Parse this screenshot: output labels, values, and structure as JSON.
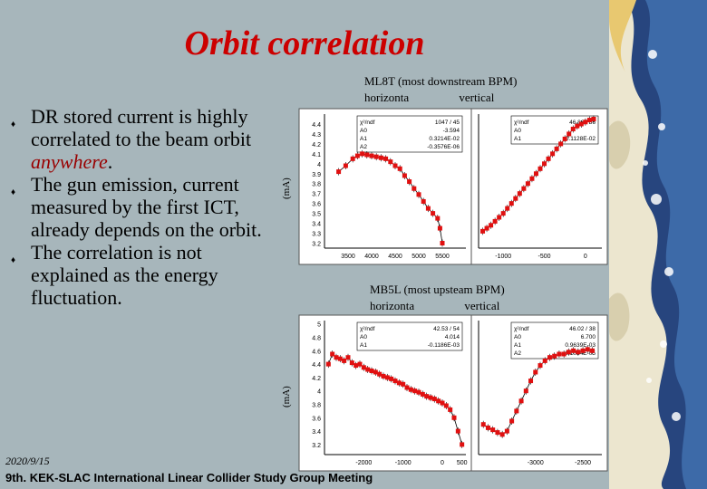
{
  "slide": {
    "title": "Orbit correlation",
    "bullets": [
      {
        "pre": "DR stored current is highly correlated to the beam orbit ",
        "em": "anywhere",
        "post": "."
      },
      {
        "pre": "The gun emission, current measured by the first ICT, already depends on the orbit.",
        "em": "",
        "post": ""
      },
      {
        "pre": "The correlation is not explained as the energy fluctuation.",
        "em": "",
        "post": ""
      }
    ],
    "top_caption": "ML8T (most downstream BPM)",
    "top_sub": "horizonta                 vertical",
    "bottom_caption": "MB5L (most upsteam BPM)",
    "bottom_sub": "horizonta                 vertical",
    "y_unit": "(mA)",
    "date": "2020/9/15",
    "meeting": "9th. KEK-SLAC International Linear Collider Study Group Meeting"
  },
  "chart_data": [
    {
      "type": "scatter",
      "name": "ML8T horizontal",
      "ylim": [
        3.15,
        4.5
      ],
      "xlim": [
        3000,
        6000
      ],
      "yticks": [
        "4.4",
        "4.3",
        "4.2",
        "4.1",
        "4",
        "3.9",
        "3.8",
        "3.7",
        "3.6",
        "3.5",
        "3.4",
        "3.3",
        "3.2"
      ],
      "xticks": [
        "3500",
        "4000",
        "4500",
        "5000",
        "5500"
      ],
      "fit_box": [
        [
          "χ²/ndf",
          "1047 / 45"
        ],
        [
          "A0",
          "-3.594"
        ],
        [
          "A1",
          "0.3214E-02"
        ],
        [
          "A2",
          "-0.3576E-06"
        ]
      ],
      "x": [
        3300,
        3450,
        3600,
        3700,
        3800,
        3900,
        4000,
        4100,
        4200,
        4300,
        4400,
        4500,
        4600,
        4700,
        4800,
        4900,
        5000,
        5100,
        5200,
        5300,
        5400,
        5450,
        5500
      ],
      "y": [
        3.92,
        3.98,
        4.05,
        4.08,
        4.1,
        4.09,
        4.08,
        4.07,
        4.06,
        4.05,
        4.02,
        3.98,
        3.95,
        3.88,
        3.82,
        3.75,
        3.69,
        3.62,
        3.55,
        3.5,
        3.45,
        3.35,
        3.2
      ]
    },
    {
      "type": "scatter",
      "name": "ML8T vertical",
      "ylim": [
        3.15,
        4.5
      ],
      "xlim": [
        -1300,
        200
      ],
      "xticks": [
        "-1000",
        "-500",
        "0"
      ],
      "fit_box": [
        [
          "χ²/ndf",
          "46.86 / 56"
        ],
        [
          "A0",
          ""
        ],
        [
          "A1",
          "0.1128E-02"
        ]
      ],
      "x": [
        -1250,
        -1200,
        -1150,
        -1100,
        -1050,
        -1000,
        -950,
        -900,
        -850,
        -800,
        -750,
        -700,
        -650,
        -600,
        -550,
        -500,
        -450,
        -400,
        -350,
        -300,
        -250,
        -200,
        -150,
        -100,
        -50,
        0,
        50,
        100
      ],
      "y": [
        3.32,
        3.35,
        3.38,
        3.42,
        3.46,
        3.5,
        3.55,
        3.6,
        3.65,
        3.7,
        3.75,
        3.8,
        3.85,
        3.9,
        3.95,
        4.0,
        4.05,
        4.1,
        4.15,
        4.2,
        4.25,
        4.3,
        4.35,
        4.38,
        4.4,
        4.42,
        4.44,
        4.45
      ]
    },
    {
      "type": "scatter",
      "name": "MB5L horizontal",
      "ylim": [
        3.05,
        5.05
      ],
      "xlim": [
        -3000,
        600
      ],
      "yticks": [
        "5",
        "4.8",
        "4.6",
        "4.4",
        "4.2",
        "4",
        "3.8",
        "3.6",
        "3.4",
        "3.2",
        "3"
      ],
      "xticks": [
        "-2000",
        "-1000",
        "0",
        "500"
      ],
      "fit_box": [
        [
          "χ²/ndf",
          "42.53 / 54"
        ],
        [
          "A0",
          "4.014"
        ],
        [
          "A1",
          "-0.1186E-03"
        ]
      ],
      "x": [
        -2900,
        -2800,
        -2700,
        -2600,
        -2500,
        -2400,
        -2300,
        -2200,
        -2100,
        -2000,
        -1900,
        -1800,
        -1700,
        -1600,
        -1500,
        -1400,
        -1300,
        -1200,
        -1100,
        -1000,
        -900,
        -800,
        -700,
        -600,
        -500,
        -400,
        -300,
        -200,
        -100,
        0,
        100,
        200,
        300,
        400,
        500
      ],
      "y": [
        4.4,
        4.55,
        4.5,
        4.48,
        4.45,
        4.5,
        4.42,
        4.38,
        4.4,
        4.35,
        4.32,
        4.3,
        4.28,
        4.25,
        4.22,
        4.2,
        4.18,
        4.15,
        4.12,
        4.1,
        4.05,
        4.02,
        4.0,
        3.98,
        3.95,
        3.92,
        3.9,
        3.88,
        3.85,
        3.82,
        3.78,
        3.72,
        3.6,
        3.4,
        3.2
      ]
    },
    {
      "type": "scatter",
      "name": "MB5L vertical",
      "ylim": [
        3.05,
        5.05
      ],
      "xlim": [
        -3600,
        -2300
      ],
      "xticks": [
        "-3000",
        "-2500"
      ],
      "fit_box": [
        [
          "χ²/ndf",
          "46.02 / 38"
        ],
        [
          "A0",
          "6.700"
        ],
        [
          "A1",
          "0.9639E-03"
        ],
        [
          "A2",
          "0.1054E-05"
        ]
      ],
      "x": [
        -3550,
        -3500,
        -3450,
        -3400,
        -3350,
        -3300,
        -3250,
        -3200,
        -3150,
        -3100,
        -3050,
        -3000,
        -2950,
        -2900,
        -2850,
        -2800,
        -2750,
        -2700,
        -2650,
        -2600,
        -2550,
        -2500,
        -2450,
        -2400
      ],
      "y": [
        3.5,
        3.45,
        3.42,
        3.38,
        3.35,
        3.4,
        3.55,
        3.7,
        3.85,
        4.0,
        4.15,
        4.28,
        4.38,
        4.45,
        4.5,
        4.52,
        4.55,
        4.55,
        4.58,
        4.6,
        4.58,
        4.6,
        4.62,
        4.6
      ]
    }
  ]
}
